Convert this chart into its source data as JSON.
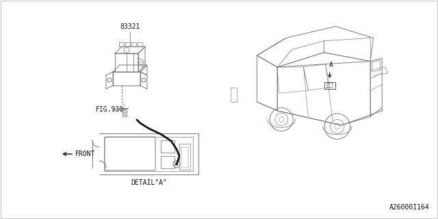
{
  "bg_color": "#ffffff",
  "line_color": "#777777",
  "dark_line": "#333333",
  "black": "#111111",
  "part_number": "83321",
  "fig_ref": "FIG.930",
  "detail_label": "DETAIL\"A\"",
  "front_label": "⇐FRONT",
  "diagram_id": "A26000I164",
  "arrow_label": "A",
  "font_size_tiny": 6,
  "font_size_small": 7,
  "font_size_medium": 8
}
